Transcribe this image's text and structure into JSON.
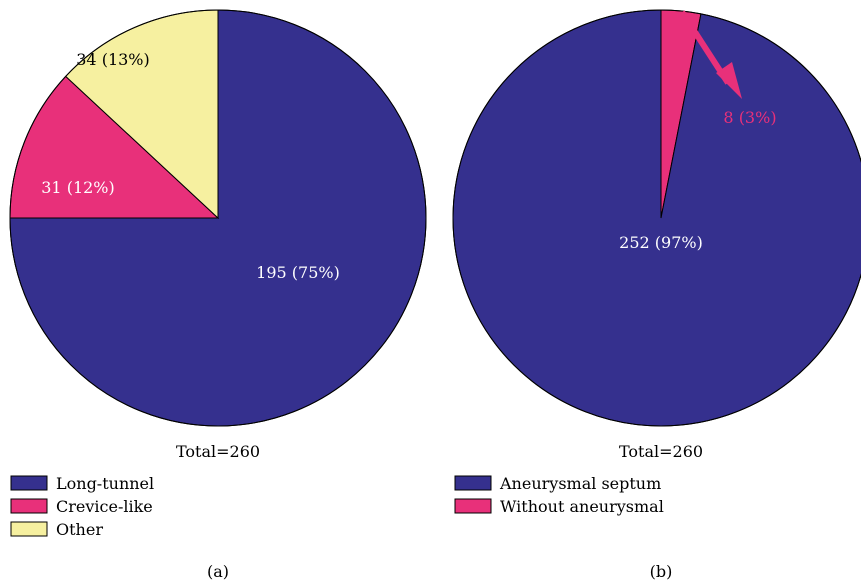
{
  "colors": {
    "navy": "#35308E",
    "magenta": "#E8307A",
    "yellow": "#F6F0A0",
    "white": "#FFFFFF",
    "black": "#000000"
  },
  "chart_data": [
    {
      "type": "pie",
      "panel_label": "(a)",
      "total_label": "Total=260",
      "slices": [
        {
          "name": "Long-tunnel",
          "value": 195,
          "label": "195 (75%)",
          "color": "#35308E",
          "label_color": "#FFFFFF"
        },
        {
          "name": "Crevice-like",
          "value": 31,
          "label": "31 (12%)",
          "color": "#E8307A",
          "label_color": "#FFFFFF"
        },
        {
          "name": "Other",
          "value": 34,
          "label": "34 (13%)",
          "color": "#F6F0A0",
          "label_color": "#000000"
        }
      ],
      "legend": [
        "Long-tunnel",
        "Crevice-like",
        "Other"
      ],
      "legend_placement": "bottom-left"
    },
    {
      "type": "pie",
      "panel_label": "(b)",
      "total_label": "Total=260",
      "slices": [
        {
          "name": "Aneurysmal septum",
          "value": 252,
          "label": "252 (97%)",
          "color": "#35308E",
          "label_color": "#FFFFFF"
        },
        {
          "name": "Without aneurysmal",
          "value": 8,
          "label": "8 (3%)",
          "color": "#E8307A",
          "label_color": "#E8307A"
        }
      ],
      "legend": [
        "Aneurysmal septum",
        "Without aneurysmal"
      ],
      "legend_placement": "bottom-left",
      "annotation": "arrow pointing from the 8 (3%) slice to its label"
    }
  ]
}
